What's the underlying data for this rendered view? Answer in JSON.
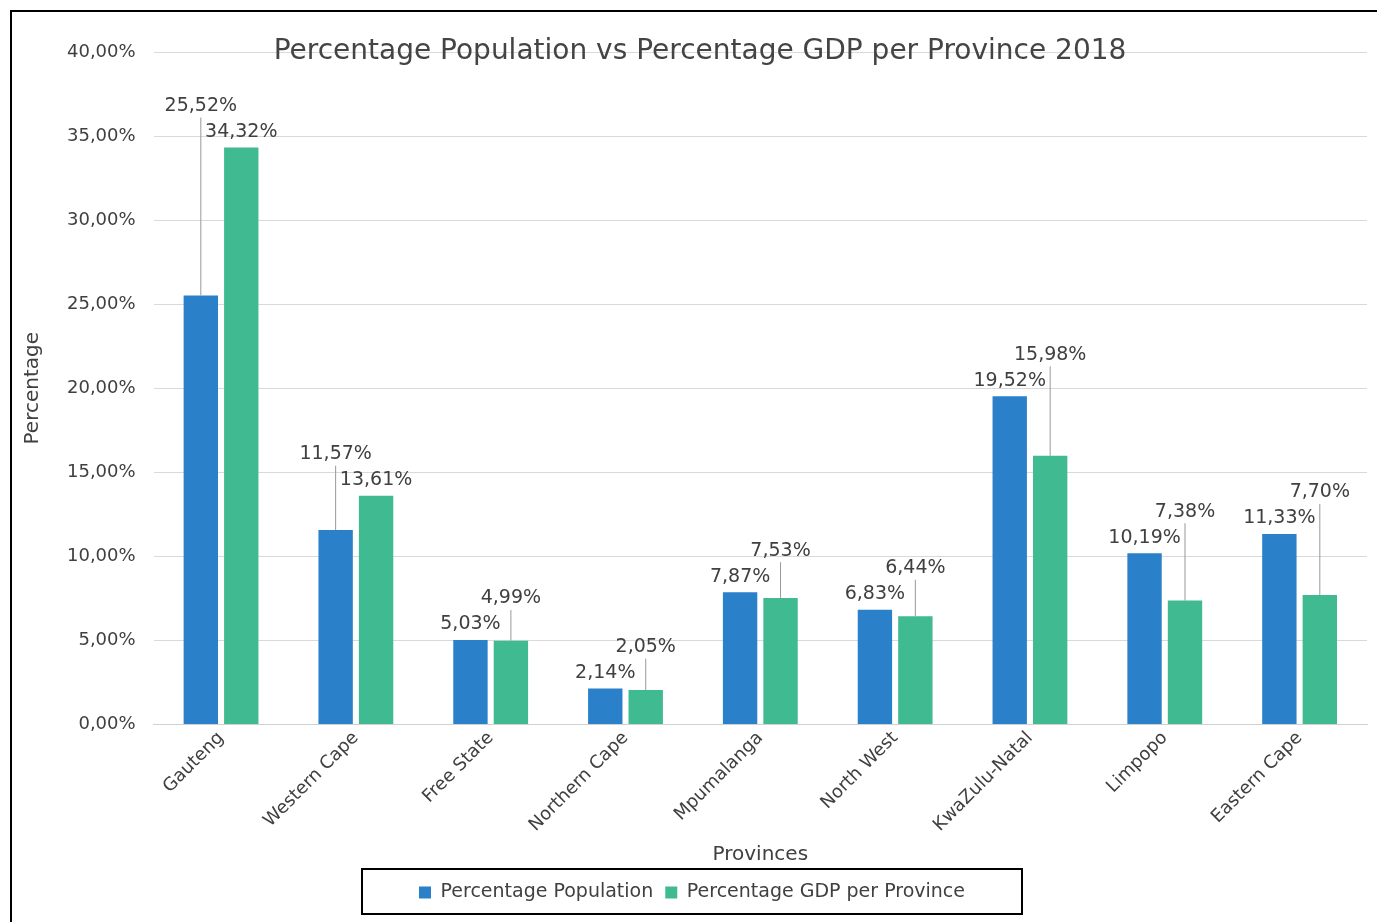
{
  "chart_data": {
    "type": "bar",
    "title": "Percentage Population vs Percentage GDP per Province 2018",
    "xlabel": "Provinces",
    "ylabel": "Percentage",
    "categories": [
      "Gauteng",
      "Western Cape",
      "Free State",
      "Northern Cape",
      "Mpumalanga",
      "North West",
      "KwaZulu-Natal",
      "Limpopo",
      "Eastern Cape"
    ],
    "series": [
      {
        "name": "Percentage Population",
        "color": "#2a81c9",
        "values": [
          25.52,
          11.57,
          5.03,
          2.14,
          7.87,
          6.83,
          19.52,
          10.19,
          11.33
        ],
        "value_labels": [
          "25,52%",
          "11,57%",
          "5,03%",
          "2,14%",
          "7,87%",
          "6,83%",
          "19,52%",
          "10,19%",
          "11,33%"
        ]
      },
      {
        "name": "Percentage GDP per Province",
        "color": "#3fba91",
        "values": [
          34.32,
          13.61,
          4.99,
          2.05,
          7.53,
          6.44,
          15.98,
          7.38,
          7.7
        ],
        "value_labels": [
          "34,32%",
          "13,61%",
          "4,99%",
          "2,05%",
          "7,53%",
          "6,44%",
          "15,98%",
          "7,38%",
          "7,70%"
        ]
      }
    ],
    "ylim": [
      0,
      40
    ],
    "yticks": [
      {
        "value": 0,
        "label": "0,00%"
      },
      {
        "value": 5,
        "label": "5,00%"
      },
      {
        "value": 10,
        "label": "10,00%"
      },
      {
        "value": 15,
        "label": "15,00%"
      },
      {
        "value": 20,
        "label": "20,00%"
      },
      {
        "value": 25,
        "label": "25,00%"
      },
      {
        "value": 30,
        "label": "30,00%"
      },
      {
        "value": 35,
        "label": "35,00%"
      },
      {
        "value": 40,
        "label": "40,00%"
      }
    ],
    "grid": "y",
    "legend": "bottom"
  }
}
